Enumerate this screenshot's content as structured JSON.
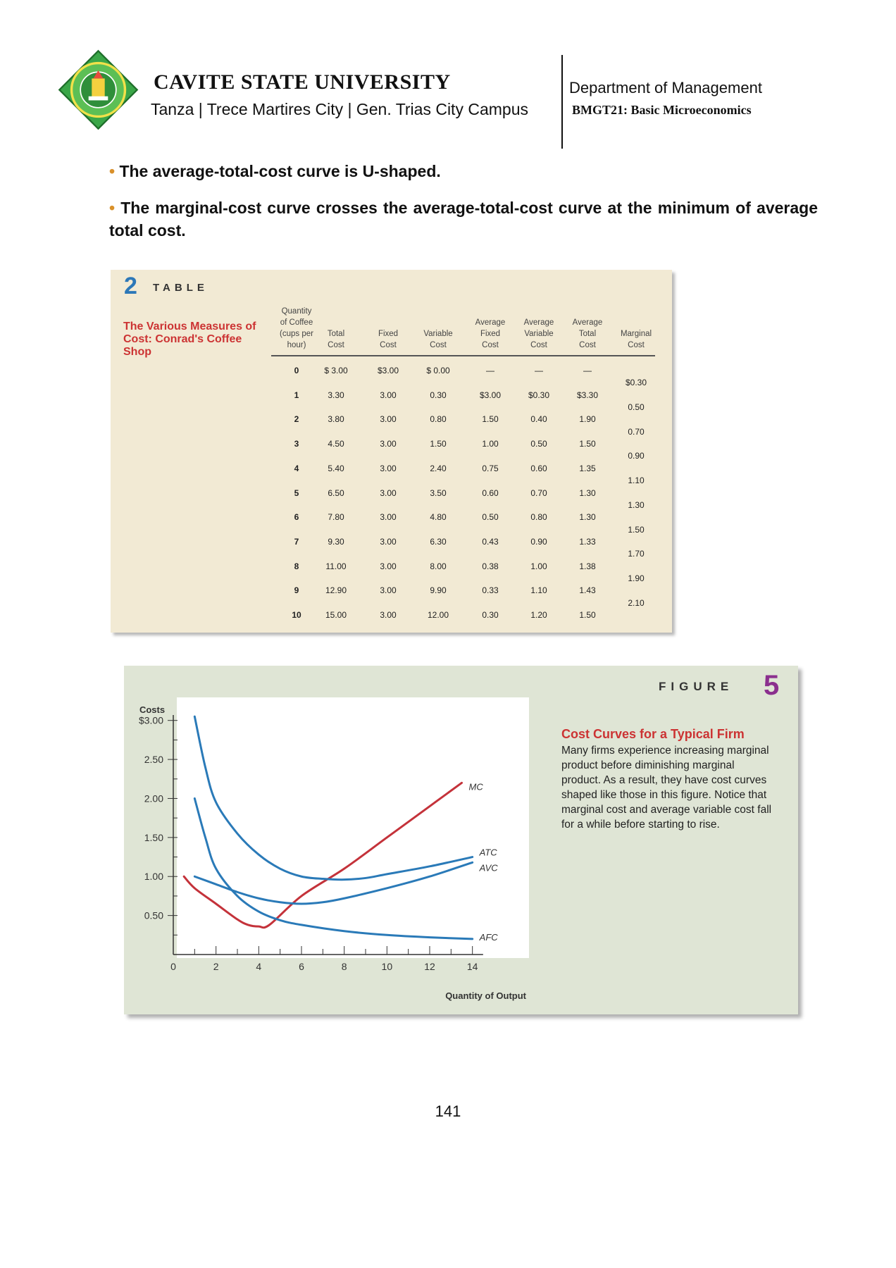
{
  "header": {
    "university": "CAVITE STATE UNIVERSITY",
    "campus": "Tanza | Trece Martires City | Gen. Trias City Campus",
    "department": "Department of Management",
    "course": "BMGT21: Basic Microeconomics",
    "logo_icon": "university-seal-icon",
    "logo_color": "#3aa648"
  },
  "bullets": [
    "The average-total-cost curve is U-shaped.",
    "The marginal-cost curve crosses the average-total-cost curve at the minimum of average total cost."
  ],
  "table": {
    "number": "2",
    "label": "TABLE",
    "caption": "The Various Measures of Cost: Conrad's Coffee Shop",
    "columns": [
      [
        "Quantity",
        "of Coffee",
        "(cups per",
        "hour)"
      ],
      [
        "Total",
        "Cost"
      ],
      [
        "Fixed",
        "Cost"
      ],
      [
        "Variable",
        "Cost"
      ],
      [
        "Average",
        "Fixed",
        "Cost"
      ],
      [
        "Average",
        "Variable",
        "Cost"
      ],
      [
        "Average",
        "Total",
        "Cost"
      ],
      [
        "Marginal",
        "Cost"
      ]
    ],
    "rows": [
      [
        "0",
        "$ 3.00",
        "$3.00",
        "$ 0.00",
        "—",
        "—",
        "—"
      ],
      [
        "1",
        "3.30",
        "3.00",
        "0.30",
        "$3.00",
        "$0.30",
        "$3.30"
      ],
      [
        "2",
        "3.80",
        "3.00",
        "0.80",
        "1.50",
        "0.40",
        "1.90"
      ],
      [
        "3",
        "4.50",
        "3.00",
        "1.50",
        "1.00",
        "0.50",
        "1.50"
      ],
      [
        "4",
        "5.40",
        "3.00",
        "2.40",
        "0.75",
        "0.60",
        "1.35"
      ],
      [
        "5",
        "6.50",
        "3.00",
        "3.50",
        "0.60",
        "0.70",
        "1.30"
      ],
      [
        "6",
        "7.80",
        "3.00",
        "4.80",
        "0.50",
        "0.80",
        "1.30"
      ],
      [
        "7",
        "9.30",
        "3.00",
        "6.30",
        "0.43",
        "0.90",
        "1.33"
      ],
      [
        "8",
        "11.00",
        "3.00",
        "8.00",
        "0.38",
        "1.00",
        "1.38"
      ],
      [
        "9",
        "12.90",
        "3.00",
        "9.90",
        "0.33",
        "1.10",
        "1.43"
      ],
      [
        "10",
        "15.00",
        "3.00",
        "12.00",
        "0.30",
        "1.20",
        "1.50"
      ]
    ],
    "marginal": [
      "$0.30",
      "0.50",
      "0.70",
      "0.90",
      "1.10",
      "1.30",
      "1.50",
      "1.70",
      "1.90",
      "2.10"
    ]
  },
  "figure": {
    "label": "FIGURE",
    "number": "5",
    "title": "Cost Curves for a Typical Firm",
    "text": "Many firms experience increasing marginal product before diminishing marginal product. As a result, they have cost curves shaped like those in this figure. Notice that marginal cost and average variable cost fall for a while before starting to rise."
  },
  "chart_data": {
    "type": "line",
    "title": "",
    "ylabel": "Costs",
    "xlabel": "Quantity of Output",
    "xlim": [
      0,
      15
    ],
    "ylim": [
      0,
      3.25
    ],
    "x_ticks": [
      "0",
      "2",
      "4",
      "6",
      "8",
      "10",
      "12",
      "14"
    ],
    "y_ticks": [
      "$3.00",
      "2.50",
      "2.00",
      "1.50",
      "1.00",
      "0.50"
    ],
    "y_tick_values": [
      3.0,
      2.5,
      2.0,
      1.5,
      1.0,
      0.5
    ],
    "grid": false,
    "series": [
      {
        "name": "MC",
        "color": "#c4323a",
        "x": [
          0.5,
          1,
          2,
          3,
          3.5,
          4,
          4.5,
          6,
          8,
          10,
          12,
          13.5
        ],
        "y": [
          1.0,
          0.85,
          0.65,
          0.45,
          0.38,
          0.36,
          0.38,
          0.75,
          1.1,
          1.5,
          1.9,
          2.2
        ]
      },
      {
        "name": "ATC",
        "color": "#2a7ab8",
        "x": [
          1,
          1.5,
          2,
          3,
          4,
          5,
          6,
          7,
          8,
          9,
          10,
          12,
          14
        ],
        "y": [
          3.05,
          2.4,
          1.95,
          1.55,
          1.28,
          1.1,
          1.0,
          0.97,
          0.96,
          0.98,
          1.03,
          1.13,
          1.25
        ]
      },
      {
        "name": "AVC",
        "color": "#2a7ab8",
        "x": [
          1,
          2,
          3,
          4,
          5,
          6,
          7,
          8,
          10,
          12,
          14
        ],
        "y": [
          1.0,
          0.9,
          0.8,
          0.72,
          0.67,
          0.65,
          0.67,
          0.72,
          0.85,
          1.0,
          1.18
        ]
      },
      {
        "name": "AFC",
        "color": "#2a7ab8",
        "x": [
          1,
          1.5,
          2,
          3,
          4,
          5,
          6,
          8,
          10,
          12,
          14
        ],
        "y": [
          2.0,
          1.5,
          1.1,
          0.75,
          0.55,
          0.44,
          0.38,
          0.3,
          0.25,
          0.22,
          0.2
        ]
      }
    ]
  },
  "page_number": "141"
}
